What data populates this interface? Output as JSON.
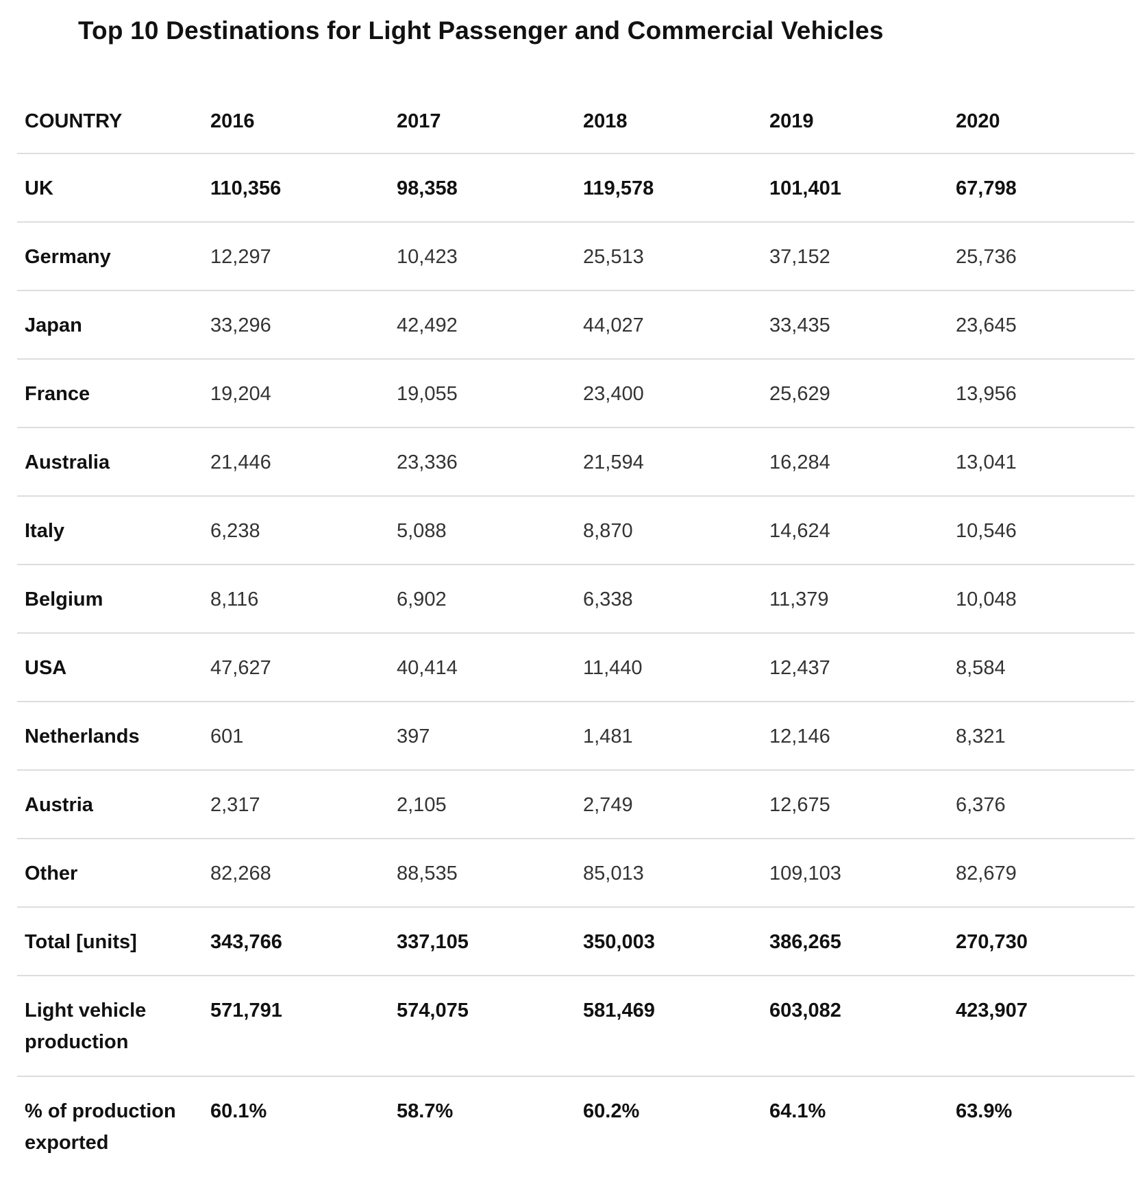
{
  "title": "Top 10 Destinations for Light Passenger and Commercial Vehicles",
  "table": {
    "headers": [
      "COUNTRY",
      "2016",
      "2017",
      "2018",
      "2019",
      "2020"
    ],
    "rows": [
      {
        "label": "UK",
        "values": [
          "110,356",
          "98,358",
          "119,578",
          "101,401",
          "67,798"
        ],
        "bold": true
      },
      {
        "label": "Germany",
        "values": [
          "12,297",
          "10,423",
          "25,513",
          "37,152",
          "25,736"
        ]
      },
      {
        "label": "Japan",
        "values": [
          "33,296",
          "42,492",
          "44,027",
          "33,435",
          "23,645"
        ]
      },
      {
        "label": "France",
        "values": [
          "19,204",
          "19,055",
          "23,400",
          "25,629",
          "13,956"
        ]
      },
      {
        "label": "Australia",
        "values": [
          "21,446",
          "23,336",
          "21,594",
          "16,284",
          "13,041"
        ]
      },
      {
        "label": "Italy",
        "values": [
          "6,238",
          "5,088",
          "8,870",
          "14,624",
          "10,546"
        ]
      },
      {
        "label": "Belgium",
        "values": [
          "8,116",
          "6,902",
          "6,338",
          "11,379",
          "10,048"
        ]
      },
      {
        "label": "USA",
        "values": [
          "47,627",
          "40,414",
          "11,440",
          "12,437",
          "8,584"
        ]
      },
      {
        "label": "Netherlands",
        "values": [
          "601",
          "397",
          "1,481",
          "12,146",
          "8,321"
        ]
      },
      {
        "label": "Austria",
        "values": [
          "2,317",
          "2,105",
          "2,749",
          "12,675",
          "6,376"
        ]
      },
      {
        "label": "Other",
        "values": [
          "82,268",
          "88,535",
          "85,013",
          "109,103",
          "82,679"
        ]
      },
      {
        "label": "Total [units]",
        "values": [
          "343,766",
          "337,105",
          "350,003",
          "386,265",
          "270,730"
        ],
        "bold": true
      },
      {
        "label": "Light vehicle production",
        "values": [
          "571,791",
          "574,075",
          "581,469",
          "603,082",
          "423,907"
        ],
        "bold": true
      },
      {
        "label": "% of production exported",
        "values": [
          "60.1%",
          "58.7%",
          "60.2%",
          "64.1%",
          "63.9%"
        ],
        "bold": true
      }
    ]
  }
}
